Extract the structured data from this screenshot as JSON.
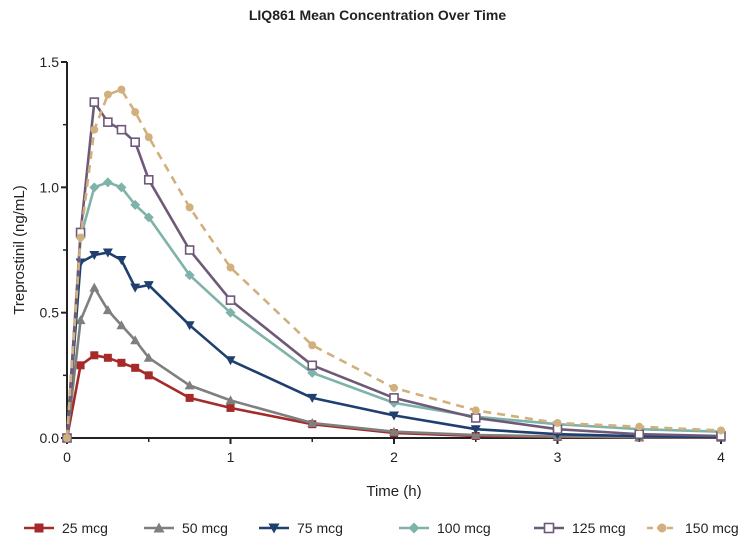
{
  "chart_data": {
    "type": "line",
    "title": "LIQ861 Mean Concentration Over Time",
    "xlabel": "Time (h)",
    "ylabel": "Treprostinil (ng/mL)",
    "xlim": [
      0,
      4
    ],
    "ylim": [
      0,
      1.5
    ],
    "x_ticks": [
      "0",
      "1",
      "2",
      "3",
      "4"
    ],
    "y_ticks": [
      "0.0",
      "0.5",
      "1.0",
      "1.5"
    ],
    "grid": false,
    "legend_position": "bottom",
    "series": [
      {
        "name": "25 mcg",
        "color": "#a52a2a",
        "marker": "square-filled",
        "dashed": false,
        "points": [
          [
            0,
            0.0
          ],
          [
            0.083,
            0.29
          ],
          [
            0.167,
            0.33
          ],
          [
            0.25,
            0.32
          ],
          [
            0.333,
            0.3
          ],
          [
            0.417,
            0.28
          ],
          [
            0.5,
            0.25
          ],
          [
            0.75,
            0.16
          ],
          [
            1,
            0.12
          ],
          [
            1.5,
            0.055
          ],
          [
            2,
            0.02
          ],
          [
            2.5,
            0.008
          ],
          [
            3,
            0.004
          ],
          [
            3.5,
            0.002
          ],
          [
            4,
            0.001
          ]
        ]
      },
      {
        "name": "50 mcg",
        "color": "#7f7f7f",
        "marker": "triangle-up",
        "dashed": false,
        "points": [
          [
            0,
            0.0
          ],
          [
            0.083,
            0.47
          ],
          [
            0.167,
            0.6
          ],
          [
            0.25,
            0.51
          ],
          [
            0.333,
            0.45
          ],
          [
            0.417,
            0.39
          ],
          [
            0.5,
            0.32
          ],
          [
            0.75,
            0.21
          ],
          [
            1,
            0.15
          ],
          [
            1.5,
            0.06
          ],
          [
            2,
            0.025
          ],
          [
            2.5,
            0.012
          ],
          [
            3,
            0.006
          ],
          [
            3.5,
            0.003
          ],
          [
            4,
            0.002
          ]
        ]
      },
      {
        "name": "75 mcg",
        "color": "#1f3f6e",
        "marker": "triangle-down",
        "dashed": false,
        "points": [
          [
            0,
            0.0
          ],
          [
            0.083,
            0.7
          ],
          [
            0.167,
            0.73
          ],
          [
            0.25,
            0.74
          ],
          [
            0.333,
            0.71
          ],
          [
            0.417,
            0.6
          ],
          [
            0.5,
            0.61
          ],
          [
            0.75,
            0.45
          ],
          [
            1,
            0.31
          ],
          [
            1.5,
            0.16
          ],
          [
            2,
            0.09
          ],
          [
            2.5,
            0.035
          ],
          [
            3,
            0.015
          ],
          [
            3.5,
            0.007
          ],
          [
            4,
            0.003
          ]
        ]
      },
      {
        "name": "100 mcg",
        "color": "#7fb2a8",
        "marker": "diamond",
        "dashed": false,
        "points": [
          [
            0,
            0.0
          ],
          [
            0.083,
            0.8
          ],
          [
            0.167,
            1.0
          ],
          [
            0.25,
            1.02
          ],
          [
            0.333,
            1.0
          ],
          [
            0.417,
            0.93
          ],
          [
            0.5,
            0.88
          ],
          [
            0.75,
            0.65
          ],
          [
            1,
            0.5
          ],
          [
            1.5,
            0.26
          ],
          [
            2,
            0.14
          ],
          [
            2.5,
            0.085
          ],
          [
            3,
            0.055
          ],
          [
            3.5,
            0.035
          ],
          [
            4,
            0.025
          ]
        ]
      },
      {
        "name": "125 mcg",
        "color": "#6e5a78",
        "marker": "square-open",
        "dashed": false,
        "points": [
          [
            0,
            0.0
          ],
          [
            0.083,
            0.82
          ],
          [
            0.167,
            1.34
          ],
          [
            0.25,
            1.26
          ],
          [
            0.333,
            1.23
          ],
          [
            0.417,
            1.18
          ],
          [
            0.5,
            1.03
          ],
          [
            0.75,
            0.75
          ],
          [
            1,
            0.55
          ],
          [
            1.5,
            0.29
          ],
          [
            2,
            0.16
          ],
          [
            2.5,
            0.08
          ],
          [
            3,
            0.035
          ],
          [
            3.5,
            0.015
          ],
          [
            4,
            0.008
          ]
        ]
      },
      {
        "name": "150 mcg",
        "color": "#d2b07e",
        "marker": "circle",
        "dashed": true,
        "points": [
          [
            0,
            0.0
          ],
          [
            0.083,
            0.8
          ],
          [
            0.167,
            1.23
          ],
          [
            0.25,
            1.37
          ],
          [
            0.333,
            1.39
          ],
          [
            0.417,
            1.3
          ],
          [
            0.5,
            1.2
          ],
          [
            0.75,
            0.92
          ],
          [
            1,
            0.68
          ],
          [
            1.5,
            0.37
          ],
          [
            2,
            0.2
          ],
          [
            2.5,
            0.11
          ],
          [
            3,
            0.06
          ],
          [
            3.5,
            0.045
          ],
          [
            4,
            0.03
          ]
        ]
      }
    ]
  }
}
